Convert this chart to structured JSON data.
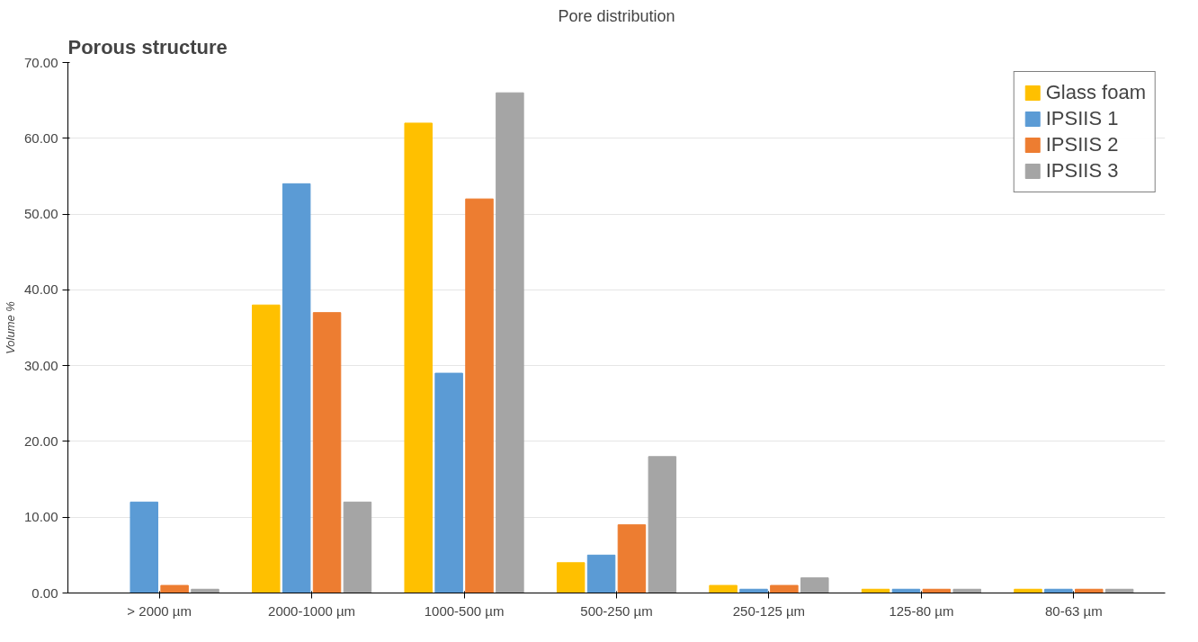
{
  "chart_data": {
    "type": "bar",
    "title": "Pore distribution",
    "ylabel": "Volume %",
    "annotations": [
      "Porous structure"
    ],
    "categories": [
      "> 2000 µm",
      "2000-1000 µm",
      "1000-500 µm",
      "500-250 µm",
      "250-125 µm",
      "125-80 µm",
      "80-63 µm"
    ],
    "series": [
      {
        "name": "Glass foam",
        "color": "#ffc000",
        "values": [
          0,
          38,
          62,
          4,
          1,
          0.5,
          0.5
        ]
      },
      {
        "name": "IPSIIS 1",
        "color": "#5b9bd5",
        "values": [
          12,
          54,
          29,
          5,
          0.5,
          0.5,
          0.5
        ]
      },
      {
        "name": "IPSIIS 2",
        "color": "#ed7d31",
        "values": [
          1,
          37,
          52,
          9,
          1,
          0.5,
          0.5
        ]
      },
      {
        "name": "IPSIIS 3",
        "color": "#a5a5a5",
        "values": [
          0.5,
          12,
          66,
          18,
          2,
          0.5,
          0.5
        ]
      }
    ],
    "ylim": [
      0,
      70
    ],
    "yticks": [
      {
        "value": 0,
        "label": "0.00"
      },
      {
        "value": 10,
        "label": "10.00"
      },
      {
        "value": 20,
        "label": "20.00"
      },
      {
        "value": 30,
        "label": "30.00"
      },
      {
        "value": 40,
        "label": "40.00"
      },
      {
        "value": 50,
        "label": "50.00"
      },
      {
        "value": 60,
        "label": "60.00"
      },
      {
        "value": 70,
        "label": "70.00"
      }
    ],
    "grid": "y",
    "legend": "top right"
  }
}
